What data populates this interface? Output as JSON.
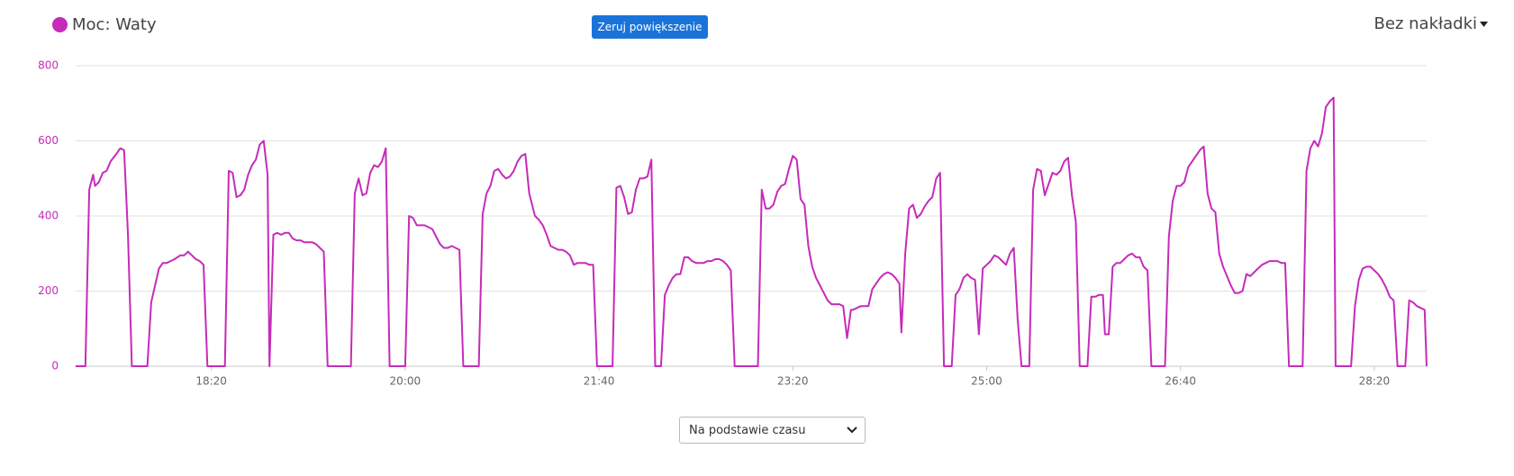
{
  "chart_data": {
    "type": "line",
    "x": [
      1030,
      1035,
      1037,
      1039,
      1040,
      1042,
      1044,
      1046,
      1048,
      1051,
      1053,
      1055,
      1057,
      1059,
      1067,
      1069,
      1071,
      1073,
      1075,
      1077,
      1079,
      1081,
      1084,
      1086,
      1088,
      1090,
      1092,
      1094,
      1096,
      1098,
      1107,
      1109,
      1111,
      1113,
      1115,
      1117,
      1119,
      1121,
      1123,
      1125,
      1127,
      1129,
      1130,
      1132,
      1134,
      1136,
      1138,
      1140,
      1142,
      1144,
      1146,
      1148,
      1150,
      1152,
      1154,
      1156,
      1158,
      1160,
      1172,
      1174,
      1176,
      1178,
      1180,
      1182,
      1184,
      1186,
      1188,
      1190,
      1192,
      1200,
      1202,
      1204,
      1206,
      1208,
      1210,
      1212,
      1214,
      1216,
      1218,
      1220,
      1222,
      1224,
      1226,
      1228,
      1230,
      1238,
      1240,
      1242,
      1244,
      1246,
      1248,
      1250,
      1252,
      1254,
      1256,
      1258,
      1260,
      1262,
      1264,
      1265,
      1267,
      1269,
      1271,
      1273,
      1275,
      1277,
      1279,
      1281,
      1283,
      1285,
      1287,
      1289,
      1291,
      1293,
      1295,
      1297,
      1299,
      1307,
      1309,
      1311,
      1313,
      1315,
      1317,
      1319,
      1321,
      1323,
      1325,
      1327,
      1329,
      1332,
      1334,
      1336,
      1338,
      1340,
      1342,
      1344,
      1346,
      1348,
      1350,
      1352,
      1354,
      1356,
      1358,
      1360,
      1362,
      1364,
      1366,
      1368,
      1370,
      1382,
      1384,
      1386,
      1388,
      1390,
      1392,
      1394,
      1396,
      1398,
      1400,
      1402,
      1404,
      1406,
      1408,
      1410,
      1412,
      1414,
      1416,
      1418,
      1420,
      1422,
      1424,
      1426,
      1428,
      1430,
      1431,
      1433,
      1435,
      1437,
      1439,
      1441,
      1443,
      1445,
      1447,
      1449,
      1451,
      1453,
      1455,
      1456,
      1458,
      1460,
      1462,
      1464,
      1466,
      1468,
      1470,
      1472,
      1474,
      1476,
      1478,
      1482,
      1484,
      1486,
      1488,
      1490,
      1492,
      1494,
      1496,
      1498,
      1500,
      1502,
      1504,
      1506,
      1508,
      1510,
      1512,
      1514,
      1516,
      1518,
      1522,
      1524,
      1526,
      1528,
      1530,
      1532,
      1534,
      1536,
      1538,
      1540,
      1542,
      1544,
      1546,
      1548,
      1552,
      1554,
      1556,
      1558,
      1560,
      1561,
      1563,
      1565,
      1567,
      1569,
      1571,
      1573,
      1575,
      1577,
      1579,
      1581,
      1583,
      1585,
      1592,
      1594,
      1596,
      1598,
      1600,
      1602,
      1604,
      1606,
      1608,
      1610,
      1612,
      1614,
      1616,
      1618,
      1620,
      1622,
      1624,
      1626,
      1628,
      1630,
      1632,
      1634,
      1636,
      1638,
      1640,
      1642,
      1644,
      1646,
      1648,
      1650,
      1652,
      1654,
      1656,
      1663,
      1665,
      1667,
      1669,
      1671,
      1673,
      1675,
      1677,
      1679,
      1680,
      1688,
      1690,
      1692,
      1694,
      1696,
      1698,
      1700,
      1702,
      1704,
      1706,
      1708,
      1710,
      1712,
      1716,
      1718,
      1720,
      1722,
      1724,
      1726,
      1727
    ],
    "series": [
      {
        "name": "Moc: Waty",
        "color": "#c62bb9",
        "values": [
          0,
          0,
          470,
          510,
          480,
          490,
          515,
          520,
          545,
          565,
          580,
          575,
          350,
          0,
          0,
          170,
          215,
          260,
          275,
          275,
          280,
          285,
          295,
          295,
          305,
          295,
          285,
          280,
          270,
          0,
          0,
          520,
          515,
          450,
          455,
          470,
          510,
          535,
          550,
          590,
          600,
          510,
          0,
          350,
          355,
          350,
          355,
          355,
          340,
          335,
          335,
          330,
          330,
          330,
          325,
          315,
          305,
          0,
          0,
          460,
          500,
          455,
          460,
          515,
          535,
          530,
          545,
          580,
          0,
          0,
          400,
          395,
          375,
          375,
          375,
          370,
          365,
          345,
          325,
          315,
          315,
          320,
          315,
          310,
          0,
          0,
          405,
          460,
          480,
          520,
          525,
          510,
          500,
          505,
          520,
          545,
          560,
          565,
          460,
          440,
          400,
          390,
          375,
          350,
          320,
          315,
          310,
          310,
          305,
          295,
          270,
          275,
          275,
          275,
          270,
          270,
          0,
          0,
          475,
          480,
          450,
          405,
          410,
          470,
          500,
          500,
          505,
          550,
          0,
          0,
          190,
          215,
          235,
          245,
          245,
          290,
          290,
          280,
          275,
          275,
          275,
          280,
          280,
          285,
          285,
          280,
          270,
          255,
          0,
          0,
          470,
          420,
          420,
          430,
          465,
          480,
          485,
          525,
          560,
          550,
          445,
          430,
          320,
          265,
          235,
          215,
          195,
          175,
          165,
          165,
          165,
          160,
          75,
          150,
          150,
          155,
          160,
          160,
          160,
          205,
          220,
          235,
          245,
          250,
          245,
          235,
          220,
          90,
          300,
          420,
          430,
          395,
          405,
          425,
          440,
          450,
          500,
          515,
          0,
          0,
          190,
          205,
          235,
          245,
          235,
          230,
          85,
          260,
          270,
          280,
          295,
          290,
          280,
          270,
          300,
          315,
          125,
          0,
          0,
          470,
          525,
          520,
          455,
          485,
          515,
          510,
          520,
          545,
          555,
          455,
          385,
          0,
          0,
          185,
          185,
          190,
          190,
          85,
          85,
          265,
          275,
          275,
          285,
          295,
          300,
          290,
          290,
          265,
          255,
          0,
          0,
          345,
          440,
          480,
          480,
          490,
          530,
          545,
          560,
          575,
          585,
          460,
          420,
          410,
          300,
          265,
          240,
          215,
          195,
          195,
          200,
          245,
          240,
          250,
          260,
          270,
          275,
          280,
          280,
          280,
          275,
          275,
          0,
          0,
          520,
          580,
          600,
          585,
          620,
          690,
          705,
          715,
          0,
          0,
          160,
          230,
          260,
          265,
          265,
          255,
          245,
          230,
          210,
          185,
          175,
          0,
          0,
          175,
          170,
          160,
          155,
          150,
          0
        ]
      }
    ],
    "xlim": [
      1030,
      1727
    ],
    "xticks": [
      {
        "value": 1100,
        "label": "18:20"
      },
      {
        "value": 1200,
        "label": "20:00"
      },
      {
        "value": 1300,
        "label": "21:40"
      },
      {
        "value": 1400,
        "label": "23:20"
      },
      {
        "value": 1500,
        "label": "25:00"
      },
      {
        "value": 1600,
        "label": "26:40"
      },
      {
        "value": 1700,
        "label": "28:20"
      }
    ],
    "ylim": [
      0,
      800
    ],
    "yticks": [
      0,
      200,
      400,
      600,
      800
    ],
    "grid": true
  },
  "controls": {
    "reset_zoom": "Zeruj powiększenie",
    "overlay": "Bez nakładki",
    "x_mode": "Na podstawie czasu"
  }
}
